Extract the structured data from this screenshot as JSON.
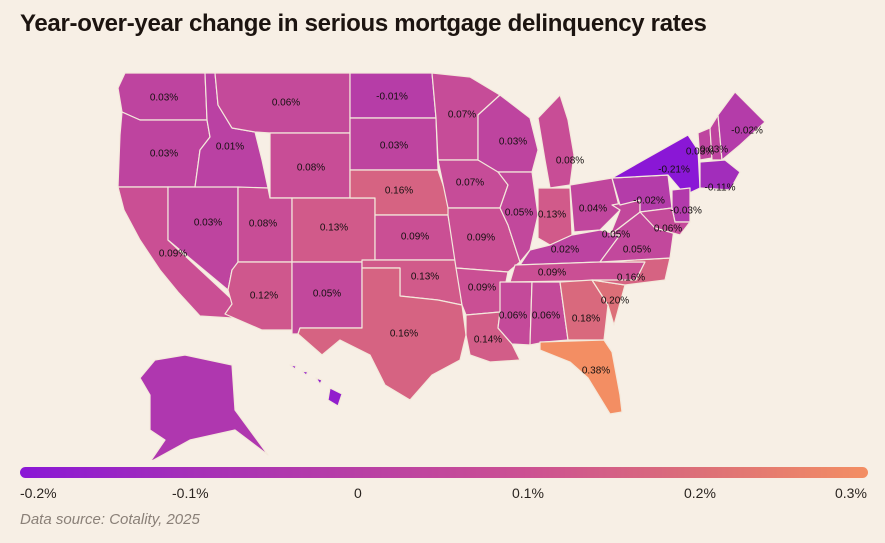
{
  "title": "Year-over-year change in serious mortgage delinquency rates",
  "source": "Data source: Cotality, 2025",
  "legend": {
    "ticks": [
      "-0.2%",
      "-0.1%",
      "0",
      "0.1%",
      "0.2%",
      "0.3%"
    ],
    "colors": [
      "#8a17d6",
      "#a52fb8",
      "#b83fa5",
      "#cc5192",
      "#dc6f78",
      "#f38e63"
    ]
  },
  "states": [
    {
      "code": "WA",
      "label": "0.03%"
    },
    {
      "code": "OR",
      "label": "0.03%"
    },
    {
      "code": "CA",
      "label": "0.09%"
    },
    {
      "code": "ID",
      "label": "0.01%"
    },
    {
      "code": "NV",
      "label": "0.03%"
    },
    {
      "code": "MT",
      "label": "0.06%"
    },
    {
      "code": "WY",
      "label": "0.08%"
    },
    {
      "code": "UT",
      "label": "0.08%"
    },
    {
      "code": "AZ",
      "label": "0.12%"
    },
    {
      "code": "CO",
      "label": "0.13%"
    },
    {
      "code": "NM",
      "label": "0.05%"
    },
    {
      "code": "ND",
      "label": "-0.01%"
    },
    {
      "code": "SD",
      "label": "0.03%"
    },
    {
      "code": "NE",
      "label": "0.16%"
    },
    {
      "code": "KS",
      "label": "0.09%"
    },
    {
      "code": "OK",
      "label": "0.13%"
    },
    {
      "code": "TX",
      "label": "0.16%"
    },
    {
      "code": "MN",
      "label": "0.07%"
    },
    {
      "code": "IA",
      "label": "0.07%"
    },
    {
      "code": "MO",
      "label": "0.09%"
    },
    {
      "code": "AR",
      "label": "0.09%"
    },
    {
      "code": "LA",
      "label": "0.14%"
    },
    {
      "code": "WI",
      "label": "0.03%"
    },
    {
      "code": "IL",
      "label": "0.05%"
    },
    {
      "code": "MI",
      "label": "0.08%"
    },
    {
      "code": "IN",
      "label": "0.13%"
    },
    {
      "code": "OH",
      "label": "0.04%"
    },
    {
      "code": "KY",
      "label": "0.02%"
    },
    {
      "code": "TN",
      "label": "0.09%"
    },
    {
      "code": "MS",
      "label": "0.06%"
    },
    {
      "code": "AL",
      "label": "0.06%"
    },
    {
      "code": "GA",
      "label": "0.18%"
    },
    {
      "code": "FL",
      "label": "0.38%"
    },
    {
      "code": "SC",
      "label": "0.20%"
    },
    {
      "code": "NC",
      "label": "0.16%"
    },
    {
      "code": "VA",
      "label": "0.05%"
    },
    {
      "code": "WV",
      "label": "0.05%"
    },
    {
      "code": "PA",
      "label": "-0.02%"
    },
    {
      "code": "NY",
      "label": "-0.21%"
    },
    {
      "code": "VT",
      "label": "0.03%"
    },
    {
      "code": "NH",
      "label": "0.03%"
    },
    {
      "code": "ME",
      "label": "-0.02%"
    },
    {
      "code": "MA",
      "label": "-0.11%"
    },
    {
      "code": "NJ",
      "label": "-0.03%"
    },
    {
      "code": "MD",
      "label": "0.06%"
    },
    {
      "code": "AK",
      "label": ""
    },
    {
      "code": "HI",
      "label": ""
    }
  ]
}
